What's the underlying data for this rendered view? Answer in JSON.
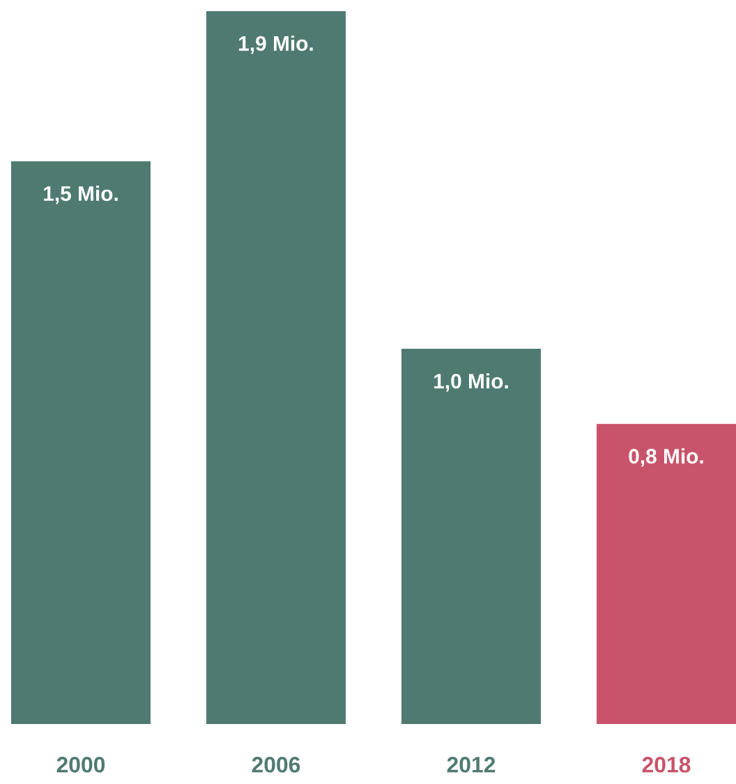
{
  "chart_data": {
    "type": "bar",
    "categories": [
      "2000",
      "2006",
      "2012",
      "2018"
    ],
    "values": [
      1.5,
      1.9,
      1.0,
      0.8
    ],
    "colors": [
      "#4f7a72",
      "#4f7a72",
      "#4f7a72",
      "#c9536a"
    ],
    "value_labels": [
      "1,5 Mio.",
      "1,9 Mio.",
      "1,0 Mio.",
      "0,8 Mio."
    ]
  }
}
